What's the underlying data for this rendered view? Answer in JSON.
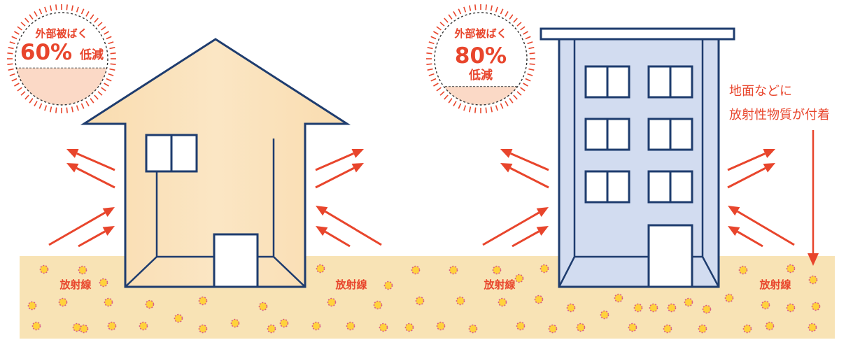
{
  "badges": {
    "house": {
      "line1": "外部被ばく",
      "percent": "60%",
      "suffix": "低減",
      "level": 0.6
    },
    "building": {
      "line1": "外部被ばく",
      "percent": "80%",
      "suffix": "低減",
      "level": 0.8
    }
  },
  "radiation_labels": [
    "放射線",
    "放射線",
    "放射線",
    "放射線"
  ],
  "note": {
    "line1": "地面などに",
    "line2": "放射性物質が付着"
  },
  "colors": {
    "ground": "#f8e3b5",
    "house_fill": "#f9dcaf",
    "building_fill": "#d2dcf0",
    "outline": "#1e3c6e",
    "accent_red": "#e8452c",
    "particle": "#ffd23c",
    "particle_ring": "#d85a8a",
    "badge_fill": "#fbd9c6"
  }
}
